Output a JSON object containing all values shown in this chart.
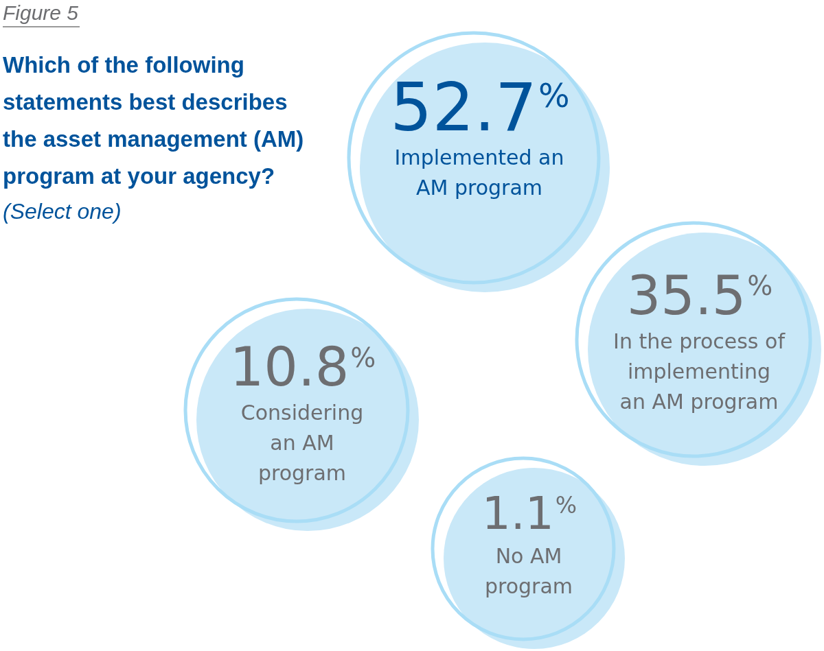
{
  "chart_data": {
    "type": "other",
    "title": "Which of the following statements best describes the asset management (AM) program at your agency?",
    "subtitle": "(Select one)",
    "annotations": [
      "Figure 5"
    ],
    "categories": [
      "Implemented an AM program",
      "In the process of implementing an AM program",
      "Considering an AM program",
      "No AM program"
    ],
    "values": [
      52.7,
      35.5,
      10.8,
      1.1
    ],
    "value_labels": [
      "52.7%",
      "35.5%",
      "10.8%",
      "1.1%"
    ],
    "colors": [
      "#c9e8f8",
      "#c9e8f8",
      "#c9e8f8",
      "#c9e8f8"
    ]
  }
}
